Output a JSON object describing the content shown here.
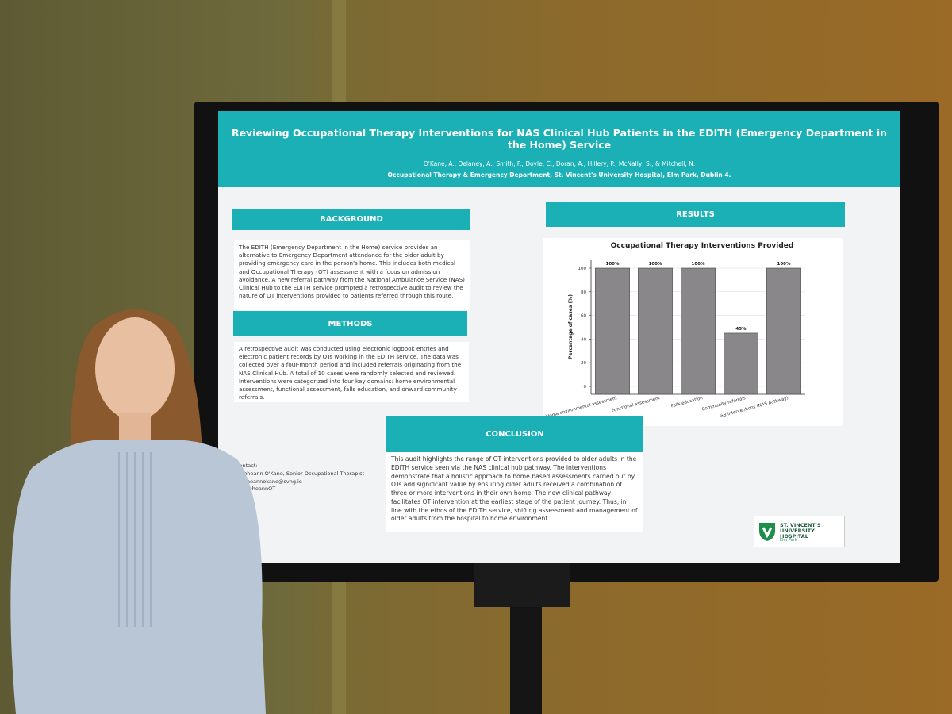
{
  "poster": {
    "title": "Reviewing Occupational Therapy Interventions for NAS Clinical Hub Patients in the EDITH (Emergency Department in the Home) Service",
    "authors": "O'Kane, A., Delaney, A., Smith, F., Doyle, C., Doran, A., Hillery, P., McNally, S., & Mitchell, N.",
    "affiliation": "Occupational Therapy & Emergency Department, St. Vincent's University Hospital, Elm Park, Dublin 4.",
    "background": {
      "heading": "BACKGROUND",
      "text": "The EDITH (Emergency Department in the Home) service provides an alternative to Emergency Department attendance for the older adult by providing emergency care in the person's home. This includes both medical and Occupational Therapy (OT) assessment with a focus on admission avoidance. A new referral pathway from the National Ambulance Service (NAS) Clinical Hub to the EDITH service prompted a retrospective audit to review the nature of OT interventions provided to patients referred through this route."
    },
    "methods": {
      "heading": "METHODS",
      "text": "A retrospective audit was conducted using electronic logbook entries and electronic patient records by OTs working in the EDITH service. The data was collected over a four-month period and included referrals originating from the NAS Clinical Hub. A total of 10 cases were randomly selected and reviewed. Interventions were categorized into four key domains: home environmental assessment, functional assessment, falls education, and onward community referrals."
    },
    "results": {
      "heading": "RESULTS",
      "chart": {
        "type": "bar",
        "title": "Occupational Therapy Interventions Provided",
        "y_label": "Percentage of cases (%)",
        "categories": [
          "Home environmental assessment",
          "Functional assessment",
          "Falls education",
          "Community referrals",
          "≥3 interventions (NAS pathway)"
        ],
        "values": [
          100,
          100,
          100,
          45,
          100
        ],
        "value_labels": [
          "100%",
          "100%",
          "100%",
          "45%",
          "100%"
        ],
        "color": "#8a878a",
        "ylim": [
          0,
          100
        ],
        "yticks": [
          0,
          20,
          40,
          60,
          80,
          100
        ],
        "grid": true
      }
    },
    "conclusion": {
      "heading": "CONCLUSION",
      "text": "This audit highlights the range of OT interventions provided to older adults in the EDITH service seen via the NAS clinical hub pathway. The interventions demonstrate that a holistic approach to home based assessments carried out by OTs add significant value by ensuring older adults received a combination of three or more interventions in their own home. The new clinical pathway facilitates OT intervention at the earliest stage of the patient journey. Thus, in line with the ethos of the EDITH service, shifting assessment and management of older adults from the hospital to home environment."
    },
    "contact": [
      "Contact:",
      "Aoibheann O'Kane, Senior Occupational Therapist",
      "aoibheannokane@svhg.ie",
      "@AoibheannOT"
    ],
    "logo": {
      "name": "ST. VINCENT'S UNIVERSITY HOSPITAL",
      "sub": "Elm Park"
    }
  }
}
